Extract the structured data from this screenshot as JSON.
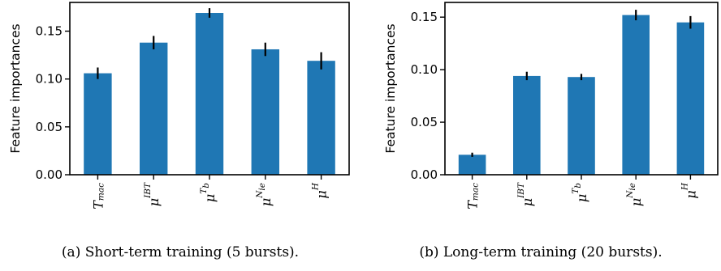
{
  "chart_data": [
    {
      "type": "bar",
      "categories": [
        "T_mac",
        "μ^IBT",
        "μ^T_b",
        "μ^N_ie",
        "μ^H"
      ],
      "values": [
        0.106,
        0.138,
        0.169,
        0.131,
        0.119
      ],
      "errors": [
        0.006,
        0.007,
        0.005,
        0.007,
        0.009
      ],
      "ylabel": "Feature importances",
      "ylim": [
        0,
        0.18
      ],
      "yticks": [
        "0.00",
        "0.05",
        "0.10",
        "0.15"
      ],
      "color": "#1f77b4",
      "caption": "(a) Short-term training (5 bursts)."
    },
    {
      "type": "bar",
      "categories": [
        "T_mac",
        "μ^IBT",
        "μ^T_b",
        "μ^N_ie",
        "μ^H"
      ],
      "values": [
        0.019,
        0.094,
        0.093,
        0.152,
        0.145
      ],
      "errors": [
        0.002,
        0.004,
        0.003,
        0.005,
        0.006
      ],
      "ylabel": "Feature importances",
      "ylim": [
        0,
        0.164
      ],
      "yticks": [
        "0.00",
        "0.05",
        "0.10",
        "0.15"
      ],
      "color": "#1f77b4",
      "caption": "(b) Long-term training (20 bursts)."
    }
  ]
}
